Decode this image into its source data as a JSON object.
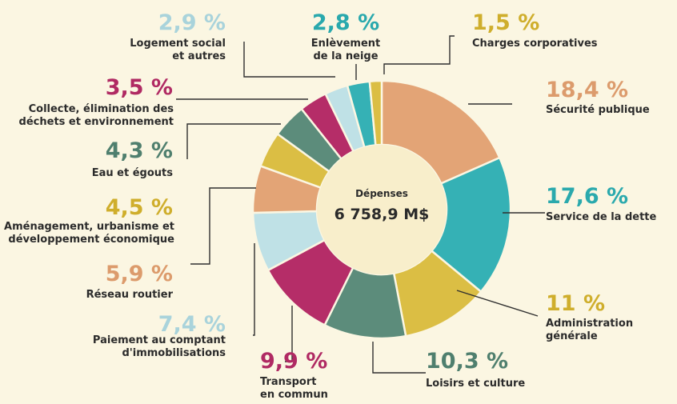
{
  "chart_data": {
    "type": "donut",
    "center_title": "Dépenses",
    "center_total": "6 758,9 M$",
    "slices": [
      {
        "name": "Sécurité publique",
        "lines": [
          "Sécurité publique"
        ],
        "value": 18.4,
        "value_label": "18,4 %",
        "color": "#e3a476",
        "label_color": "#dc9b6c"
      },
      {
        "name": "Service de la dette",
        "lines": [
          "Service de la dette"
        ],
        "value": 17.6,
        "value_label": "17,6 %",
        "color": "#35b1b5",
        "label_color": "#2aa9ad"
      },
      {
        "name": "Administration générale",
        "lines": [
          "Administration",
          "générale"
        ],
        "value": 11,
        "value_label": "11 %",
        "color": "#dbbe44",
        "label_color": "#cfae2c"
      },
      {
        "name": "Loisirs et culture",
        "lines": [
          "Loisirs et culture"
        ],
        "value": 10.3,
        "value_label": "10,3 %",
        "color": "#5c8c7b",
        "label_color": "#4f7f6e"
      },
      {
        "name": "Transport en commun",
        "lines": [
          "Transport",
          "en commun"
        ],
        "value": 9.9,
        "value_label": "9,9 %",
        "color": "#b52d68",
        "label_color": "#b02a63"
      },
      {
        "name": "Paiement au comptant d'immobilisations",
        "lines": [
          "Paiement au comptant",
          "d'immobilisations"
        ],
        "value": 7.4,
        "value_label": "7,4 %",
        "color": "#bfe1e6",
        "label_color": "#a9d3db"
      },
      {
        "name": "Réseau routier",
        "lines": [
          "Réseau routier"
        ],
        "value": 5.9,
        "value_label": "5,9 %",
        "color": "#e3a476",
        "label_color": "#dc9b6c"
      },
      {
        "name": "Aménagement, urbanisme et développement économique",
        "lines": [
          "Aménagement, urbanisme et",
          "développement économique"
        ],
        "value": 4.5,
        "value_label": "4,5 %",
        "color": "#dbbe44",
        "label_color": "#cfae2c"
      },
      {
        "name": "Eau et égouts",
        "lines": [
          "Eau et égouts"
        ],
        "value": 4.3,
        "value_label": "4,3 %",
        "color": "#5c8c7b",
        "label_color": "#4f7f6e"
      },
      {
        "name": "Collecte, élimination des déchets et environnement",
        "lines": [
          "Collecte, élimination des",
          "déchets et environnement"
        ],
        "value": 3.5,
        "value_label": "3,5 %",
        "color": "#b52d68",
        "label_color": "#b02a63"
      },
      {
        "name": "Logement social et autres",
        "lines": [
          "Logement social",
          "et autres"
        ],
        "value": 2.9,
        "value_label": "2,9 %",
        "color": "#bfe1e6",
        "label_color": "#a9d3db"
      },
      {
        "name": "Enlèvement de la neige",
        "lines": [
          "Enlèvement",
          "de la neige"
        ],
        "value": 2.8,
        "value_label": "2,8 %",
        "color": "#35b1b5",
        "label_color": "#2aa9ad"
      },
      {
        "name": "Charges corporatives",
        "lines": [
          "Charges corporatives"
        ],
        "value": 1.5,
        "value_label": "1,5 %",
        "color": "#dbbe44",
        "label_color": "#cfae2c"
      }
    ]
  }
}
